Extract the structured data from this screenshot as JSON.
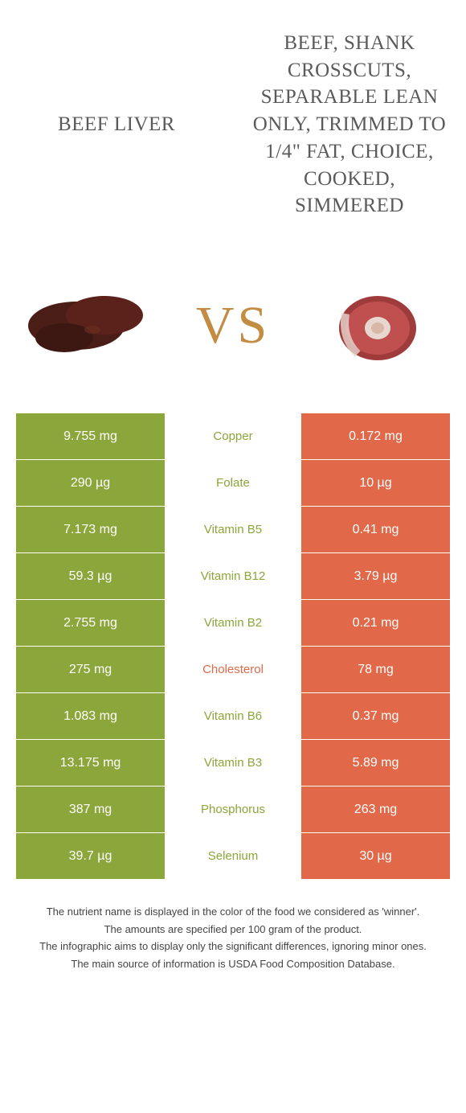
{
  "colors": {
    "food_a": "#8ba63a",
    "food_b": "#e1694a",
    "nutrient_a_text": "#8ba63a",
    "nutrient_b_text": "#e1694a",
    "vs_text": "#c28c43",
    "title_text": "#5a5a5a"
  },
  "titles": {
    "left": "Beef Liver",
    "right": "Beef, shank crosscuts, separable lean only, trimmed to 1/4\" fat, choice, cooked, simmered"
  },
  "vs_label": "VS",
  "rows": [
    {
      "left": "9.755 mg",
      "nutrient": "Copper",
      "right": "0.172 mg",
      "winner": "a"
    },
    {
      "left": "290 µg",
      "nutrient": "Folate",
      "right": "10 µg",
      "winner": "a"
    },
    {
      "left": "7.173 mg",
      "nutrient": "Vitamin B5",
      "right": "0.41 mg",
      "winner": "a"
    },
    {
      "left": "59.3 µg",
      "nutrient": "Vitamin B12",
      "right": "3.79 µg",
      "winner": "a"
    },
    {
      "left": "2.755 mg",
      "nutrient": "Vitamin B2",
      "right": "0.21 mg",
      "winner": "a"
    },
    {
      "left": "275 mg",
      "nutrient": "Cholesterol",
      "right": "78 mg",
      "winner": "b"
    },
    {
      "left": "1.083 mg",
      "nutrient": "Vitamin B6",
      "right": "0.37 mg",
      "winner": "a"
    },
    {
      "left": "13.175 mg",
      "nutrient": "Vitamin B3",
      "right": "5.89 mg",
      "winner": "a"
    },
    {
      "left": "387 mg",
      "nutrient": "Phosphorus",
      "right": "263 mg",
      "winner": "a"
    },
    {
      "left": "39.7 µg",
      "nutrient": "Selenium",
      "right": "30 µg",
      "winner": "a"
    }
  ],
  "footnotes": {
    "l1": "The nutrient name is displayed in the color of the food we considered as 'winner'.",
    "l2": "The amounts are specified per 100 gram of the product.",
    "l3": "The infographic aims to display only the significant differences, ignoring minor ones.",
    "l4": "The main source of information is USDA Food Composition Database."
  }
}
